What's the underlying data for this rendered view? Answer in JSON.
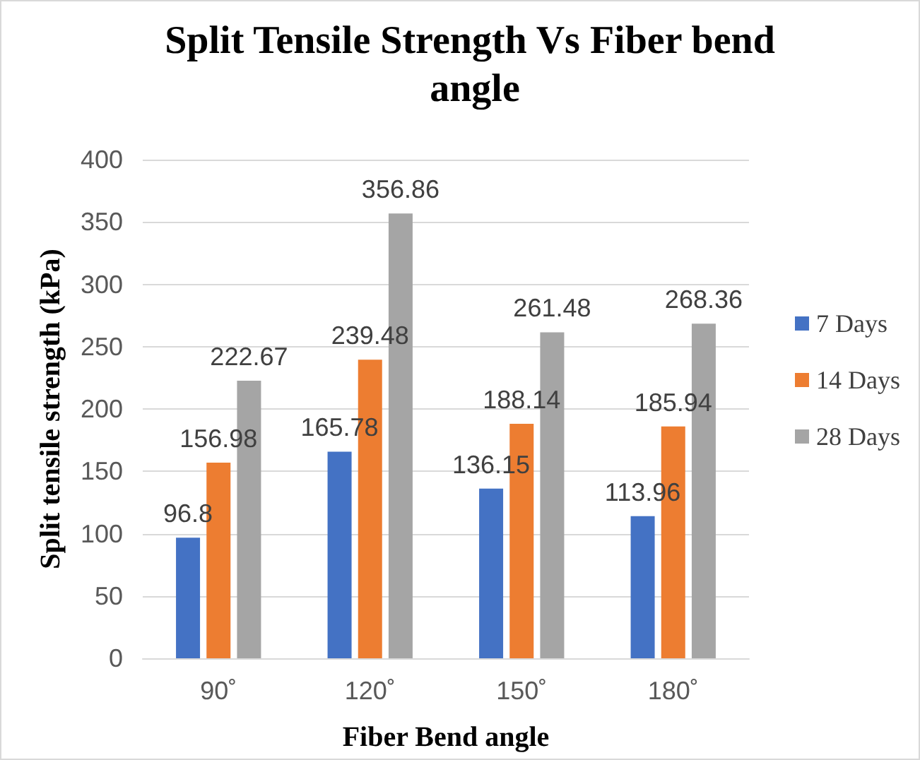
{
  "chart_data": {
    "type": "bar",
    "title": "Split Tensile Strength Vs Fiber bend angle",
    "xlabel": "Fiber Bend angle",
    "ylabel": "Split tensile strength (kPa)",
    "categories": [
      "90˚",
      "120˚",
      "150˚",
      "180˚"
    ],
    "series": [
      {
        "name": "7 Days",
        "color": "#4472c4",
        "values": [
          96.8,
          165.78,
          136.15,
          113.96
        ]
      },
      {
        "name": "14 Days",
        "color": "#ed7d31",
        "values": [
          156.98,
          239.48,
          188.14,
          185.94
        ]
      },
      {
        "name": "28 Days",
        "color": "#a5a5a5",
        "values": [
          222.67,
          356.86,
          261.48,
          268.36
        ]
      }
    ],
    "ylim": [
      0,
      400
    ],
    "yticks": [
      0,
      50,
      100,
      150,
      200,
      250,
      300,
      350,
      400
    ],
    "grid": "y",
    "legend": "right",
    "data_labels": true
  }
}
